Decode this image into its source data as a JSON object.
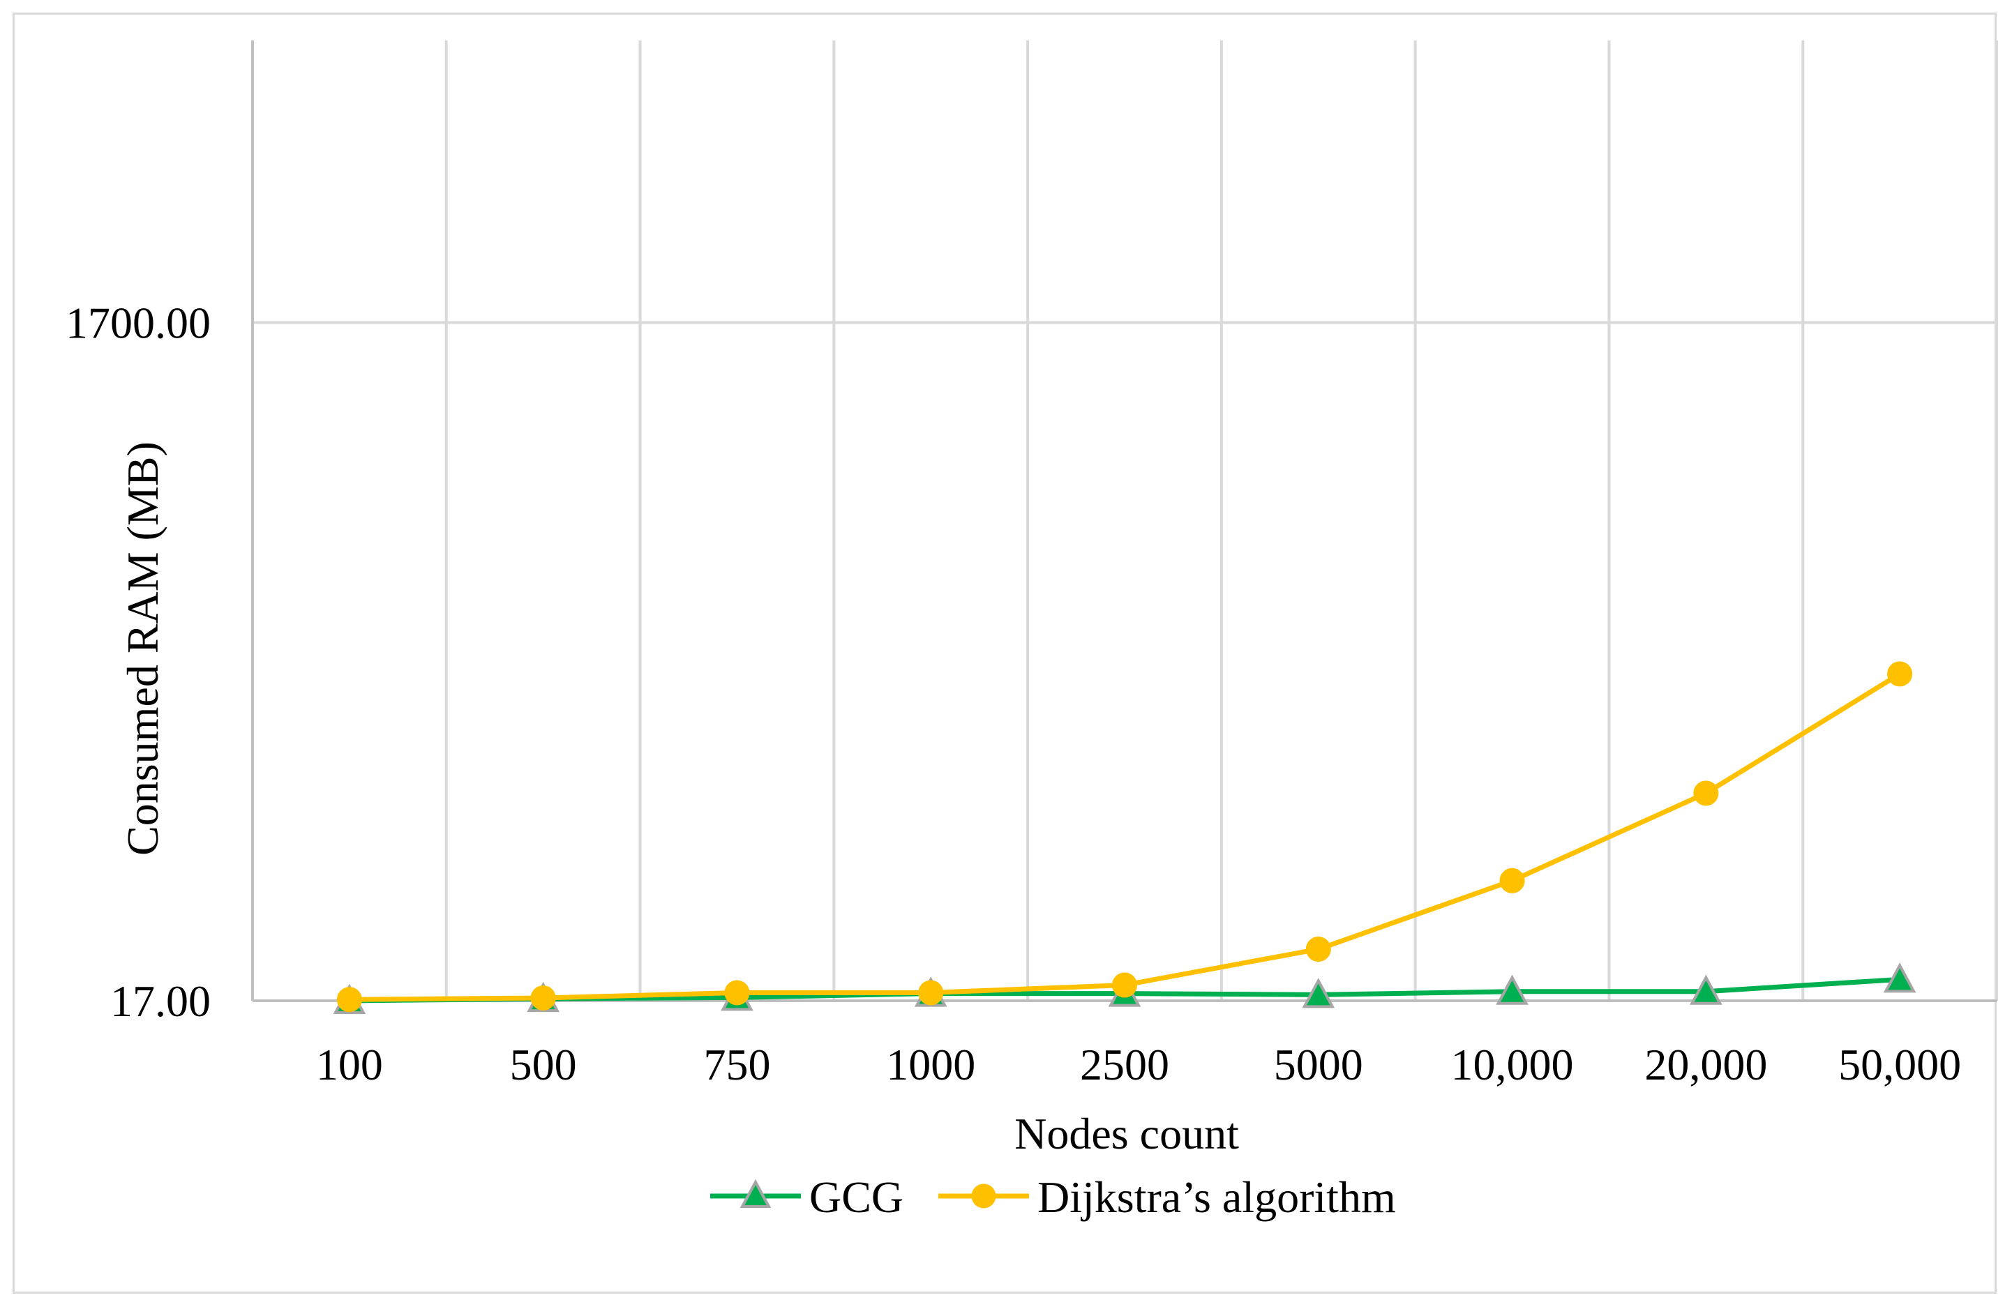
{
  "chart_data": {
    "type": "line",
    "title": "",
    "xlabel": "Nodes count",
    "ylabel": "Consumed RAM (MB)",
    "categories": [
      "100",
      "500",
      "750",
      "1000",
      "2500",
      "5000",
      "10,000",
      "20,000",
      "50,000"
    ],
    "ylim": [
      17,
      2400
    ],
    "yticks": [
      {
        "value": 17,
        "label": "17.00"
      },
      {
        "value": 1700,
        "label": "1700.00"
      }
    ],
    "grid": true,
    "legend_position": "bottom-center",
    "series": [
      {
        "name": "GCG",
        "color": "#00b050",
        "marker": "triangle",
        "marker_fill": "#00b050",
        "marker_stroke": "#a6a6a6",
        "values": [
          17,
          22,
          25,
          35,
          35,
          32,
          40,
          40,
          70
        ]
      },
      {
        "name": "Dijkstra’s algorithm",
        "color": "#ffc000",
        "marker": "circle",
        "marker_fill": "#ffc000",
        "marker_stroke": "#ffc000",
        "values": [
          20,
          24,
          37,
          37,
          56,
          145,
          315,
          532,
          828
        ]
      }
    ]
  }
}
